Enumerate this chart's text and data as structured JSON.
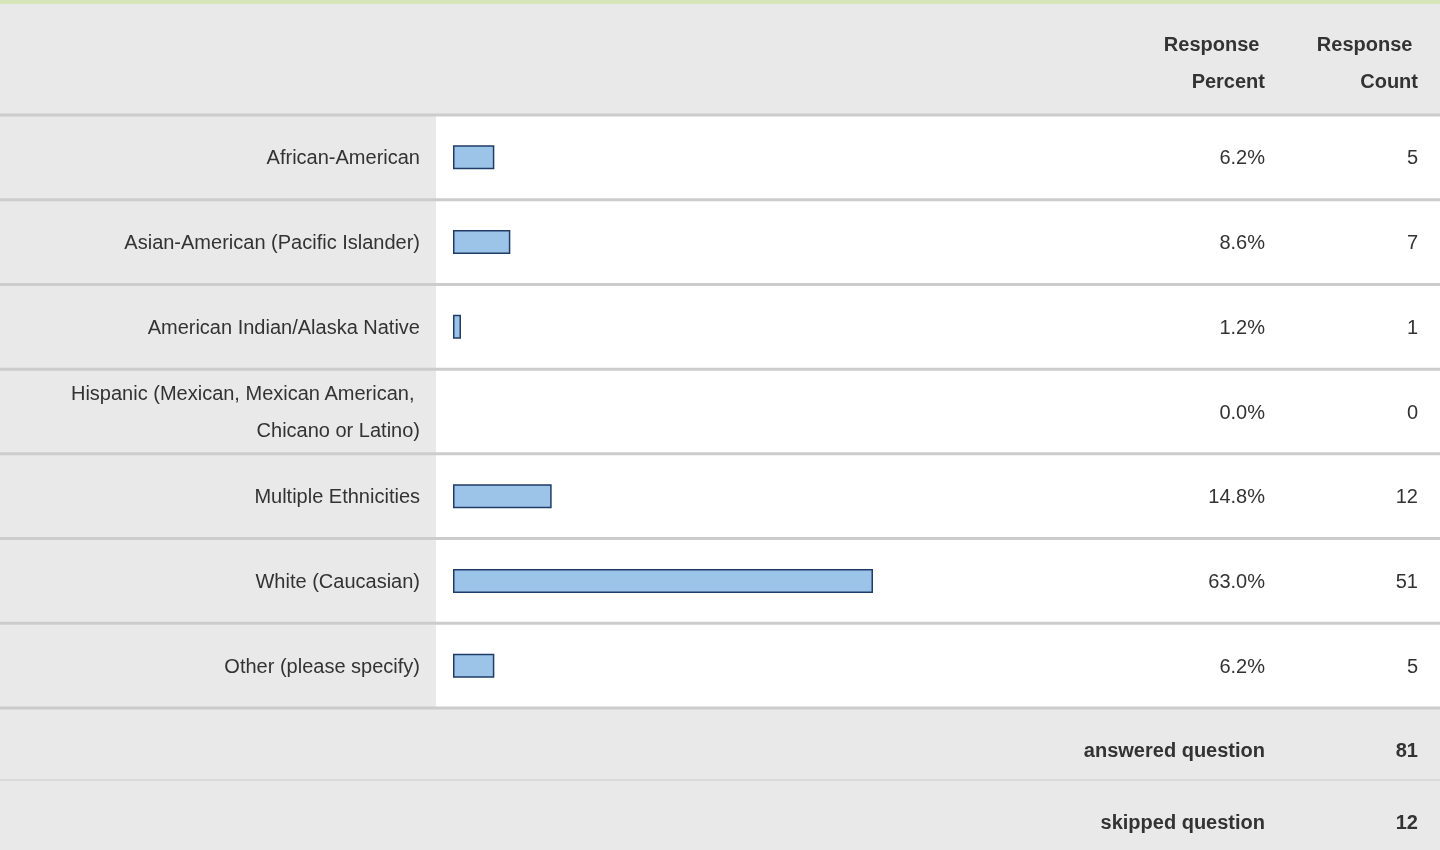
{
  "chart_data": {
    "type": "bar",
    "orientation": "horizontal",
    "categories": [
      "African-American",
      "Asian-American (Pacific Islander)",
      "American Indian/Alaska Native",
      "Hispanic (Mexican, Mexican American, Chicano or Latino)",
      "Multiple Ethnicities",
      "White (Caucasian)",
      "Other (please specify)"
    ],
    "values": [
      6.2,
      8.6,
      1.2,
      0.0,
      14.8,
      63.0,
      6.2
    ],
    "value_labels": [
      "6.2%",
      "8.6%",
      "1.2%",
      "0.0%",
      "14.8%",
      "63.0%",
      "6.2%"
    ],
    "color": "#9cc3e8",
    "tick_labels": "y",
    "grid": false,
    "annotations": [
      "Response Percent",
      "Response Count",
      "answered question",
      "81",
      "skipped question",
      "12",
      "5",
      "7",
      "1",
      "0",
      "12",
      "51",
      "5"
    ]
  }
}
